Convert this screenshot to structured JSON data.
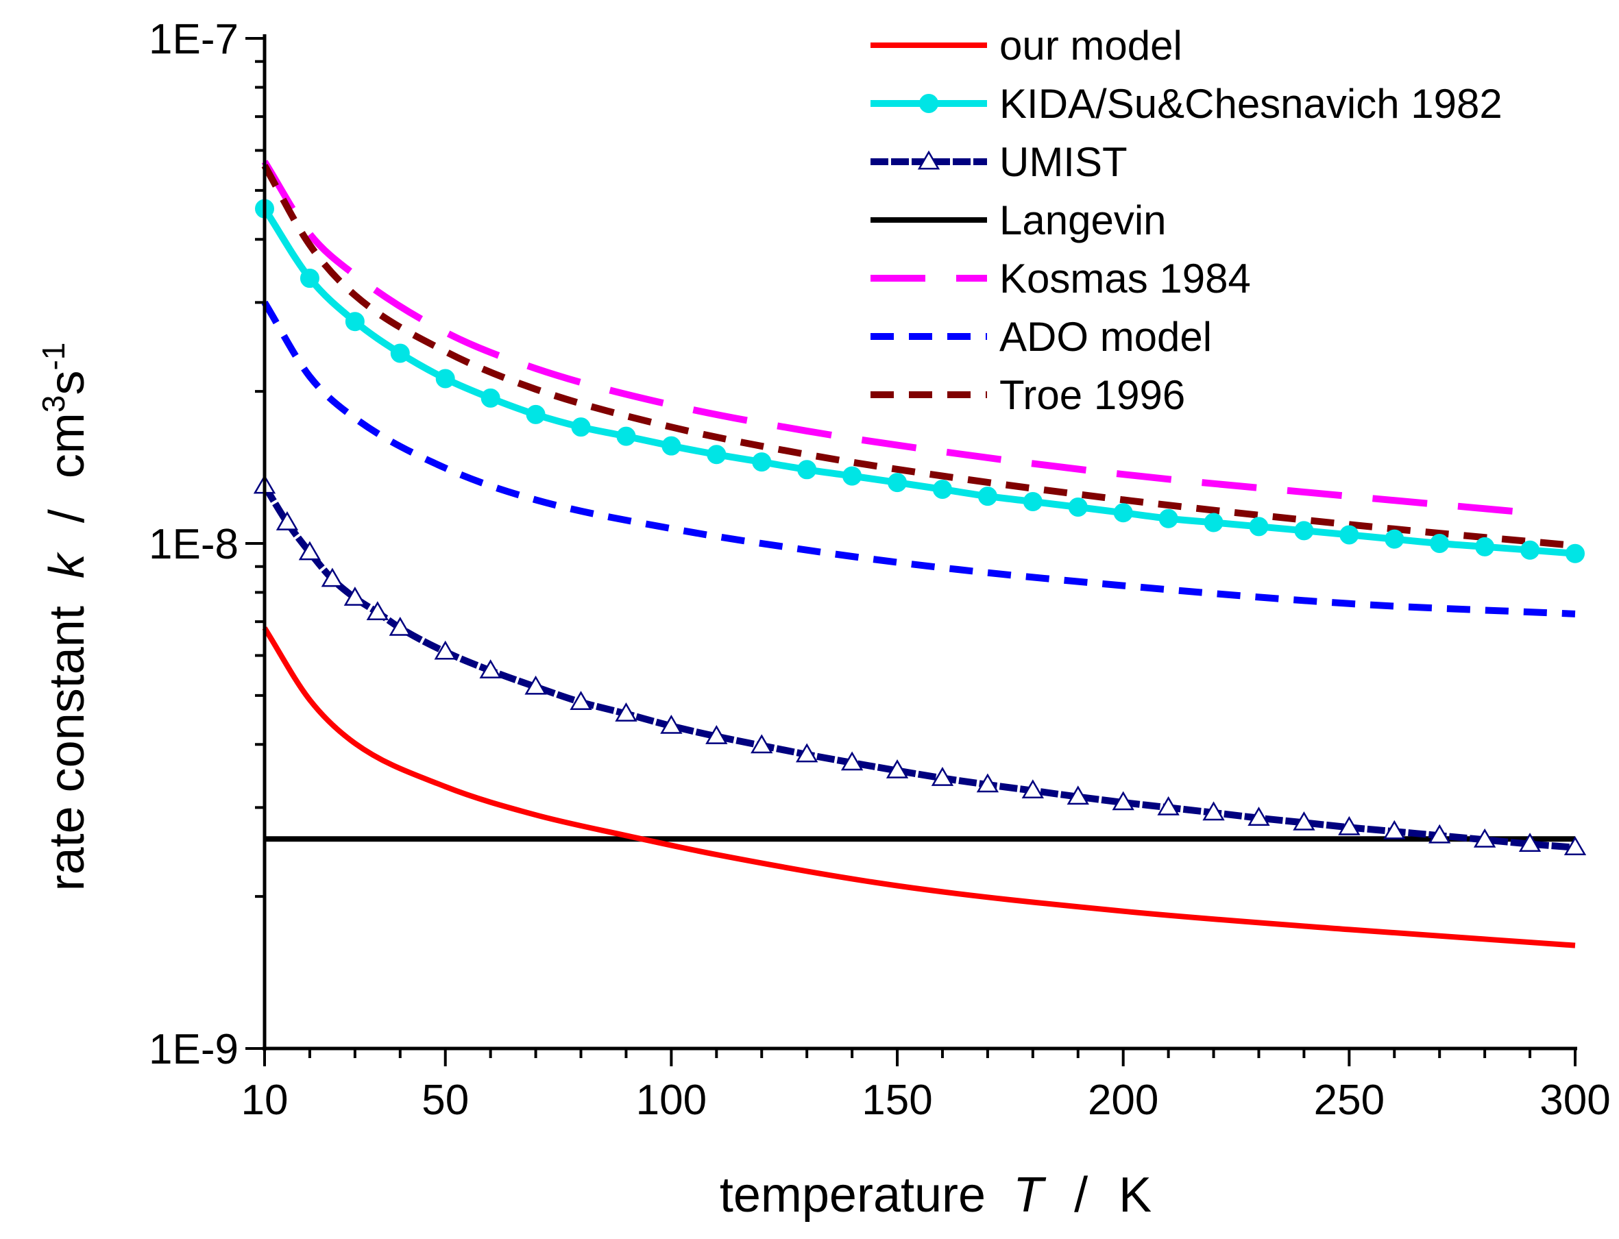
{
  "chart_data": {
    "type": "line",
    "xlabel": {
      "text": "temperature",
      "var": "T",
      "unit": "K"
    },
    "ylabel": {
      "text": "rate constant",
      "var": "k",
      "unit": "cm",
      "unit_exp": "3",
      "unit2": "s",
      "unit2_exp": "-1"
    },
    "xlim": [
      10,
      300
    ],
    "ylim": [
      1e-09,
      1e-07
    ],
    "yscale": "log",
    "x_ticks": [
      10,
      50,
      100,
      150,
      200,
      250,
      300
    ],
    "x_tick_labels": [
      "10",
      "50",
      "100",
      "150",
      "200",
      "250",
      "300"
    ],
    "y_ticks": [
      1e-09,
      1e-08,
      1e-07
    ],
    "y_tick_labels": [
      "1E-9",
      "1E-8",
      "1E-7"
    ],
    "legend_position": "top-right",
    "series": [
      {
        "name": "our model",
        "color": "#ff0000",
        "style": "solid",
        "marker": "none",
        "x": [
          10,
          20,
          30,
          50,
          70,
          90,
          110,
          150,
          200,
          250,
          300
        ],
        "y": [
          6.8e-09,
          4.9e-09,
          4.02e-09,
          3.3e-09,
          2.9e-09,
          2.64e-09,
          2.42e-09,
          2.1e-09,
          1.87e-09,
          1.72e-09,
          1.6e-09
        ]
      },
      {
        "name": "KIDA/Su&Chesnavich 1982",
        "color": "#00e5e5",
        "style": "solid",
        "marker": "circle",
        "x": [
          10,
          20,
          30,
          40,
          50,
          60,
          70,
          80,
          90,
          100,
          110,
          120,
          130,
          140,
          150,
          160,
          170,
          180,
          190,
          200,
          210,
          220,
          230,
          240,
          250,
          260,
          270,
          280,
          290,
          300
        ],
        "y": [
          4.6e-08,
          3.35e-08,
          2.75e-08,
          2.38e-08,
          2.12e-08,
          1.94e-08,
          1.8e-08,
          1.7e-08,
          1.63e-08,
          1.56e-08,
          1.5e-08,
          1.45e-08,
          1.4e-08,
          1.36e-08,
          1.32e-08,
          1.28e-08,
          1.24e-08,
          1.21e-08,
          1.18e-08,
          1.15e-08,
          1.12e-08,
          1.1e-08,
          1.08e-08,
          1.06e-08,
          1.04e-08,
          1.02e-08,
          1e-08,
          9.85e-09,
          9.7e-09,
          9.55e-09
        ]
      },
      {
        "name": "UMIST",
        "color": "#00007f",
        "style": "dashed",
        "marker": "triangle",
        "x": [
          10,
          15,
          20,
          25,
          30,
          35,
          40,
          50,
          60,
          70,
          80,
          90,
          100,
          110,
          120,
          130,
          140,
          150,
          160,
          170,
          180,
          190,
          200,
          210,
          220,
          230,
          240,
          250,
          260,
          270,
          280,
          290,
          300
        ],
        "y": [
          1.3e-08,
          1.1e-08,
          9.6e-09,
          8.5e-09,
          7.8e-09,
          7.3e-09,
          6.8e-09,
          6.1e-09,
          5.6e-09,
          5.2e-09,
          4.85e-09,
          4.6e-09,
          4.35e-09,
          4.15e-09,
          3.98e-09,
          3.82e-09,
          3.68e-09,
          3.55e-09,
          3.43e-09,
          3.33e-09,
          3.24e-09,
          3.15e-09,
          3.07e-09,
          3e-09,
          2.93e-09,
          2.86e-09,
          2.8e-09,
          2.74e-09,
          2.69e-09,
          2.64e-09,
          2.59e-09,
          2.54e-09,
          2.5e-09
        ]
      },
      {
        "name": "Langevin",
        "color": "#000000",
        "style": "solid",
        "marker": "none",
        "x": [
          10,
          300
        ],
        "y": [
          2.6e-09,
          2.6e-09
        ]
      },
      {
        "name": "Kosmas 1984",
        "color": "#ff00ff",
        "style": "longdash",
        "marker": "none",
        "x": [
          10,
          20,
          30,
          50,
          70,
          100,
          130,
          160,
          200,
          250,
          290
        ],
        "y": [
          5.7e-08,
          4.1e-08,
          3.4e-08,
          2.62e-08,
          2.22e-08,
          1.88e-08,
          1.67e-08,
          1.52e-08,
          1.37e-08,
          1.24e-08,
          1.15e-08
        ]
      },
      {
        "name": "ADO model",
        "color": "#0000ff",
        "style": "shortdash",
        "marker": "none",
        "x": [
          10,
          20,
          30,
          50,
          70,
          100,
          130,
          160,
          200,
          250,
          300
        ],
        "y": [
          3e-08,
          2.14e-08,
          1.77e-08,
          1.41e-08,
          1.22e-08,
          1.07e-08,
          9.7e-09,
          8.95e-09,
          8.25e-09,
          7.6e-09,
          7.25e-09
        ]
      },
      {
        "name": "Troe 1996",
        "color": "#800000",
        "style": "shortdash",
        "marker": "none",
        "x": [
          10,
          20,
          30,
          50,
          70,
          100,
          130,
          160,
          200,
          250,
          300
        ],
        "y": [
          5.6e-08,
          3.9e-08,
          3.1e-08,
          2.4e-08,
          2.02e-08,
          1.7e-08,
          1.5e-08,
          1.36e-08,
          1.22e-08,
          1.09e-08,
          9.9e-09
        ]
      }
    ]
  }
}
